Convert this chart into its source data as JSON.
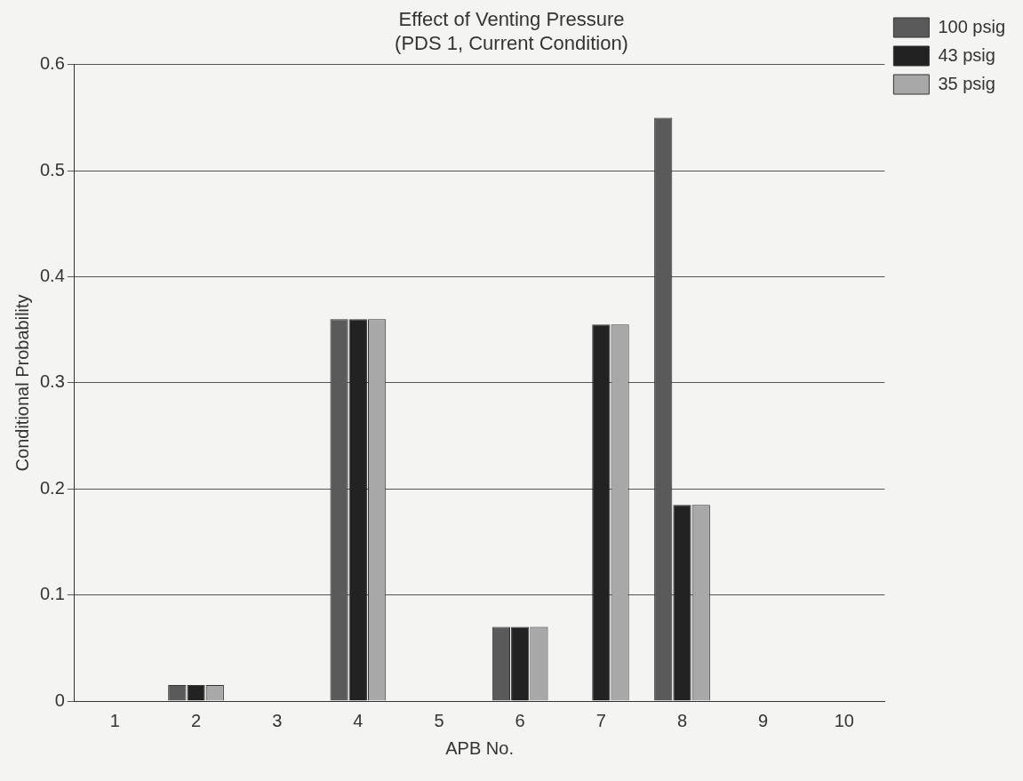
{
  "chart_data": {
    "type": "bar",
    "title": [
      "Effect of Venting Pressure",
      "(PDS 1, Current Condition)"
    ],
    "xlabel": "APB No.",
    "ylabel": "Conditional Probability",
    "categories": [
      "1",
      "2",
      "3",
      "4",
      "5",
      "6",
      "7",
      "8",
      "9",
      "10"
    ],
    "series": [
      {
        "name": "100 psig",
        "color": "#5a5a5a",
        "values": [
          0,
          0.015,
          0,
          0.36,
          0,
          0.07,
          0,
          0.55,
          0,
          0
        ]
      },
      {
        "name": "43 psig",
        "color": "#222222",
        "values": [
          0,
          0.015,
          0,
          0.36,
          0,
          0.07,
          0.355,
          0.185,
          0,
          0
        ]
      },
      {
        "name": "35 psig",
        "color": "#a8a8a8",
        "values": [
          0,
          0.015,
          0,
          0.36,
          0,
          0.07,
          0.355,
          0.185,
          0,
          0
        ]
      }
    ],
    "ylim": [
      0,
      0.6
    ],
    "yticks": [
      0,
      0.1,
      0.2,
      0.3,
      0.4,
      0.5,
      0.6
    ],
    "grid": "y",
    "legend": "top right"
  }
}
